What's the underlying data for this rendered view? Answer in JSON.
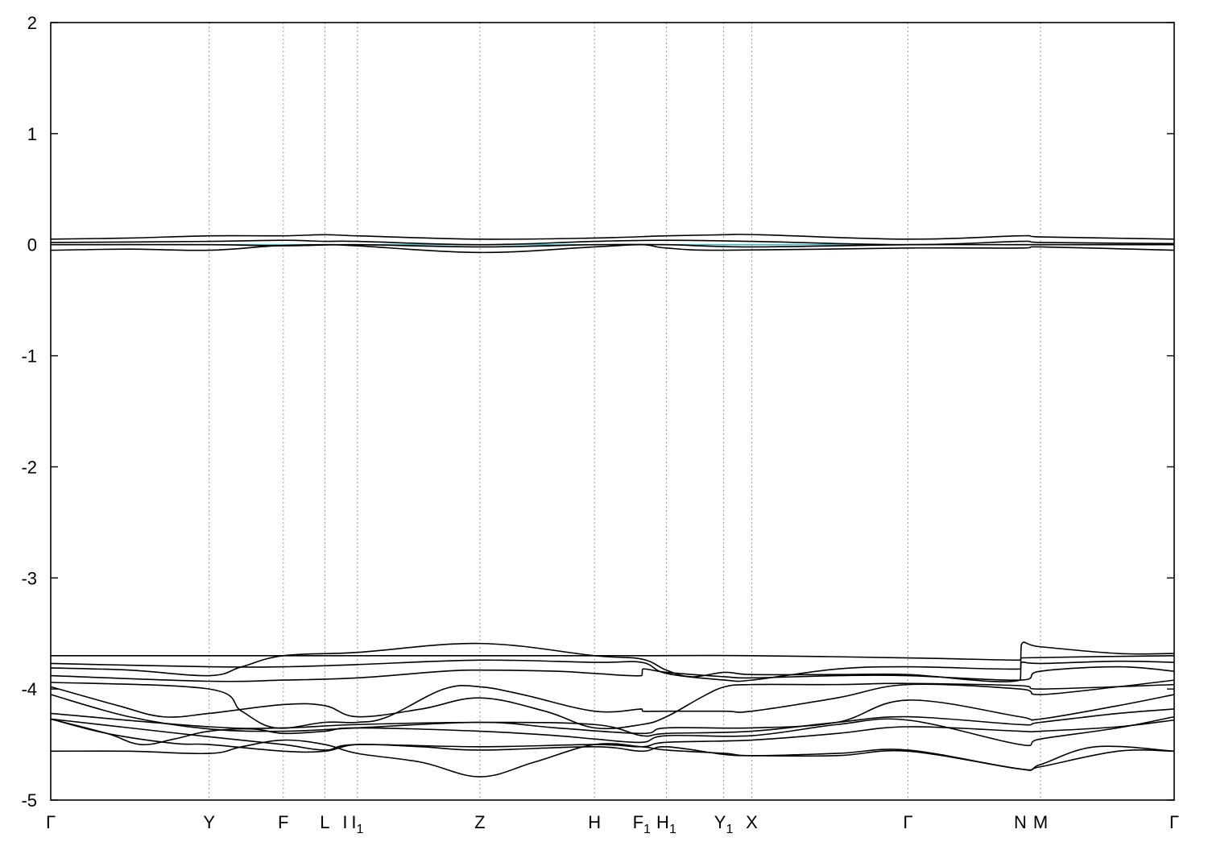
{
  "chart_data": {
    "type": "line",
    "title": "",
    "xlabel": "",
    "ylabel": "",
    "ylim": [
      -5,
      2
    ],
    "xlim": [
      0,
      1
    ],
    "grid": "vertical dotted lines at high-symmetry points",
    "legend": "none",
    "yticks": [
      {
        "value": 2,
        "label": "2"
      },
      {
        "value": 1,
        "label": "1"
      },
      {
        "value": 0,
        "label": "0"
      },
      {
        "value": -1,
        "label": "-1"
      },
      {
        "value": -2,
        "label": "-2"
      },
      {
        "value": -3,
        "label": "-3"
      },
      {
        "value": -4,
        "label": "-4"
      },
      {
        "value": -5,
        "label": "-5"
      }
    ],
    "kpoints": [
      {
        "x": 0.0,
        "label": "Γ",
        "sub": "",
        "grid": false
      },
      {
        "x": 0.141,
        "label": "Y",
        "sub": "",
        "grid": true
      },
      {
        "x": 0.207,
        "label": "F",
        "sub": "",
        "grid": true
      },
      {
        "x": 0.244,
        "label": "L",
        "sub": "",
        "grid": true
      },
      {
        "x": 0.262,
        "label": "I",
        "sub": "",
        "grid": false
      },
      {
        "x": 0.273,
        "label": "I",
        "sub": "1",
        "grid": true
      },
      {
        "x": 0.382,
        "label": "Z",
        "sub": "",
        "grid": true
      },
      {
        "x": 0.484,
        "label": "H",
        "sub": "",
        "grid": true
      },
      {
        "x": 0.526,
        "label": "F",
        "sub": "1",
        "grid": false
      },
      {
        "x": 0.548,
        "label": "H",
        "sub": "1",
        "grid": true
      },
      {
        "x": 0.599,
        "label": "Y",
        "sub": "1",
        "grid": true
      },
      {
        "x": 0.624,
        "label": "X",
        "sub": "",
        "grid": true
      },
      {
        "x": 0.763,
        "label": "Γ",
        "sub": "",
        "grid": true
      },
      {
        "x": 0.863,
        "label": "N",
        "sub": "",
        "grid": false
      },
      {
        "x": 0.881,
        "label": "M",
        "sub": "",
        "grid": true
      },
      {
        "x": 1.0,
        "label": "Γ",
        "sub": "",
        "grid": false
      }
    ],
    "fermi_level": {
      "y": 0.0,
      "color": "#3fb8c8"
    },
    "series": [
      {
        "points": [
          [
            0,
            0.05
          ],
          [
            0.07,
            0.06
          ],
          [
            0.141,
            0.08
          ],
          [
            0.207,
            0.08
          ],
          [
            0.244,
            0.09
          ],
          [
            0.273,
            0.08
          ],
          [
            0.382,
            0.05
          ],
          [
            0.484,
            0.06
          ],
          [
            0.548,
            0.08
          ],
          [
            0.6,
            0.09
          ],
          [
            0.63,
            0.09
          ],
          [
            0.763,
            0.05
          ],
          [
            0.863,
            0.08
          ],
          [
            0.881,
            0.07
          ],
          [
            1,
            0.05
          ]
        ]
      },
      {
        "points": [
          [
            0,
            0.02
          ],
          [
            0.141,
            0.03
          ],
          [
            0.207,
            0.04
          ],
          [
            0.244,
            0.03
          ],
          [
            0.273,
            0.03
          ],
          [
            0.382,
            0.0
          ],
          [
            0.484,
            0.03
          ],
          [
            0.548,
            0.04
          ],
          [
            0.624,
            0.03
          ],
          [
            0.763,
            0.0
          ],
          [
            0.863,
            0.03
          ],
          [
            0.881,
            0.02
          ],
          [
            1,
            0.01
          ]
        ]
      },
      {
        "points": [
          [
            0,
            0.0
          ],
          [
            0.141,
            0.0
          ],
          [
            0.207,
            -0.01
          ],
          [
            0.273,
            0.0
          ],
          [
            0.382,
            -0.02
          ],
          [
            0.484,
            0.0
          ],
          [
            0.548,
            0.0
          ],
          [
            0.624,
            -0.02
          ],
          [
            0.763,
            0.0
          ],
          [
            0.863,
            0.0
          ],
          [
            0.881,
            0.0
          ],
          [
            1,
            0.0
          ]
        ]
      },
      {
        "points": [
          [
            0,
            -0.05
          ],
          [
            0.07,
            -0.04
          ],
          [
            0.141,
            -0.05
          ],
          [
            0.2,
            -0.01
          ],
          [
            0.244,
            0.0
          ],
          [
            0.273,
            -0.01
          ],
          [
            0.382,
            -0.07
          ],
          [
            0.484,
            -0.02
          ],
          [
            0.526,
            0.0
          ],
          [
            0.548,
            -0.03
          ],
          [
            0.6,
            -0.05
          ],
          [
            0.763,
            -0.03
          ],
          [
            0.863,
            -0.03
          ],
          [
            0.881,
            -0.02
          ],
          [
            1,
            -0.05
          ]
        ]
      },
      {
        "points": [
          [
            0,
            -3.7
          ],
          [
            0.141,
            -3.7
          ],
          [
            0.207,
            -3.7
          ],
          [
            0.382,
            -3.7
          ],
          [
            0.484,
            -3.7
          ],
          [
            0.526,
            -3.7
          ],
          [
            0.624,
            -3.7
          ],
          [
            0.763,
            -3.72
          ],
          [
            0.863,
            -3.74
          ],
          [
            0.864,
            -3.72
          ],
          [
            1,
            -3.7
          ]
        ]
      },
      {
        "points": [
          [
            0,
            -3.77
          ],
          [
            0.141,
            -3.8
          ],
          [
            0.207,
            -3.8
          ],
          [
            0.273,
            -3.78
          ],
          [
            0.382,
            -3.74
          ],
          [
            0.484,
            -3.76
          ],
          [
            0.526,
            -3.76
          ],
          [
            0.548,
            -3.86
          ],
          [
            0.6,
            -3.92
          ],
          [
            0.624,
            -3.92
          ],
          [
            0.7,
            -3.82
          ],
          [
            0.763,
            -3.8
          ],
          [
            0.863,
            -3.82
          ],
          [
            0.864,
            -3.76
          ],
          [
            0.881,
            -3.77
          ],
          [
            0.95,
            -3.75
          ],
          [
            1,
            -3.76
          ]
        ]
      },
      {
        "points": [
          [
            0,
            -3.81
          ],
          [
            0.07,
            -3.83
          ],
          [
            0.141,
            -3.88
          ],
          [
            0.17,
            -3.8
          ],
          [
            0.207,
            -3.7
          ],
          [
            0.273,
            -3.67
          ],
          [
            0.382,
            -3.59
          ],
          [
            0.484,
            -3.7
          ],
          [
            0.526,
            -3.73
          ],
          [
            0.548,
            -3.83
          ],
          [
            0.57,
            -3.89
          ],
          [
            0.6,
            -3.85
          ],
          [
            0.624,
            -3.87
          ],
          [
            0.7,
            -3.87
          ],
          [
            0.763,
            -3.87
          ],
          [
            0.863,
            -3.92
          ],
          [
            0.864,
            -3.6
          ],
          [
            0.881,
            -3.62
          ],
          [
            0.95,
            -3.68
          ],
          [
            1,
            -3.68
          ]
        ]
      },
      {
        "points": [
          [
            0,
            -3.88
          ],
          [
            0.141,
            -3.93
          ],
          [
            0.207,
            -3.92
          ],
          [
            0.273,
            -3.9
          ],
          [
            0.35,
            -3.84
          ],
          [
            0.382,
            -3.83
          ],
          [
            0.45,
            -3.84
          ],
          [
            0.484,
            -3.86
          ],
          [
            0.526,
            -3.88
          ],
          [
            0.527,
            -3.82
          ],
          [
            0.548,
            -3.85
          ],
          [
            0.6,
            -3.89
          ],
          [
            0.624,
            -3.9
          ],
          [
            0.7,
            -3.88
          ],
          [
            0.763,
            -3.88
          ],
          [
            0.863,
            -3.92
          ],
          [
            0.881,
            -3.84
          ],
          [
            0.95,
            -3.8
          ],
          [
            1,
            -3.84
          ]
        ]
      },
      {
        "points": [
          [
            0,
            -3.94
          ],
          [
            0.141,
            -4.0
          ],
          [
            0.17,
            -4.2
          ],
          [
            0.2,
            -4.35
          ],
          [
            0.244,
            -4.3
          ],
          [
            0.273,
            -4.3
          ],
          [
            0.3,
            -4.25
          ],
          [
            0.35,
            -4.0
          ],
          [
            0.382,
            -3.98
          ],
          [
            0.42,
            -4.05
          ],
          [
            0.484,
            -4.2
          ],
          [
            0.526,
            -4.18
          ],
          [
            0.527,
            -4.2
          ],
          [
            0.548,
            -4.2
          ],
          [
            0.6,
            -4.2
          ],
          [
            0.624,
            -4.2
          ],
          [
            0.7,
            -4.08
          ],
          [
            0.763,
            -3.96
          ],
          [
            0.863,
            -4.0
          ],
          [
            0.881,
            -4.05
          ],
          [
            0.95,
            -3.98
          ],
          [
            1,
            -3.92
          ]
        ]
      },
      {
        "points": [
          [
            0,
            -3.98
          ],
          [
            0.06,
            -4.15
          ],
          [
            0.1,
            -4.25
          ],
          [
            0.141,
            -4.22
          ],
          [
            0.207,
            -4.14
          ],
          [
            0.244,
            -4.15
          ],
          [
            0.273,
            -4.25
          ],
          [
            0.33,
            -4.18
          ],
          [
            0.382,
            -4.08
          ],
          [
            0.44,
            -4.2
          ],
          [
            0.484,
            -4.35
          ],
          [
            0.526,
            -4.32
          ],
          [
            0.548,
            -4.25
          ],
          [
            0.58,
            -4.07
          ],
          [
            0.6,
            -3.98
          ],
          [
            0.624,
            -3.96
          ],
          [
            0.7,
            -3.96
          ],
          [
            0.763,
            -3.95
          ],
          [
            0.863,
            -3.97
          ],
          [
            0.881,
            -4.0
          ],
          [
            1,
            -3.96
          ]
        ]
      },
      {
        "points": [
          [
            0,
            -4.05
          ],
          [
            0.07,
            -4.25
          ],
          [
            0.141,
            -4.36
          ],
          [
            0.207,
            -4.38
          ],
          [
            0.273,
            -4.35
          ],
          [
            0.382,
            -4.3
          ],
          [
            0.45,
            -4.35
          ],
          [
            0.526,
            -4.4
          ],
          [
            0.548,
            -4.35
          ],
          [
            0.624,
            -4.35
          ],
          [
            0.7,
            -4.3
          ],
          [
            0.763,
            -4.1
          ],
          [
            0.863,
            -4.25
          ],
          [
            0.881,
            -4.27
          ],
          [
            0.95,
            -4.15
          ],
          [
            1,
            -4.05
          ]
        ]
      },
      {
        "points": [
          [
            0,
            -4.22
          ],
          [
            0.141,
            -4.34
          ],
          [
            0.207,
            -4.35
          ],
          [
            0.273,
            -4.32
          ],
          [
            0.382,
            -4.3
          ],
          [
            0.484,
            -4.32
          ],
          [
            0.526,
            -4.42
          ],
          [
            0.548,
            -4.4
          ],
          [
            0.624,
            -4.38
          ],
          [
            0.7,
            -4.3
          ],
          [
            0.763,
            -4.25
          ],
          [
            0.863,
            -4.32
          ],
          [
            0.881,
            -4.3
          ],
          [
            0.95,
            -4.22
          ],
          [
            1,
            -4.18
          ]
        ]
      },
      {
        "points": [
          [
            0,
            -4.27
          ],
          [
            0.05,
            -4.4
          ],
          [
            0.08,
            -4.5
          ],
          [
            0.11,
            -4.45
          ],
          [
            0.141,
            -4.38
          ],
          [
            0.18,
            -4.36
          ],
          [
            0.207,
            -4.4
          ],
          [
            0.244,
            -4.38
          ],
          [
            0.273,
            -4.35
          ],
          [
            0.382,
            -4.38
          ],
          [
            0.45,
            -4.42
          ],
          [
            0.484,
            -4.45
          ],
          [
            0.526,
            -4.48
          ],
          [
            0.548,
            -4.42
          ],
          [
            0.624,
            -4.42
          ],
          [
            0.7,
            -4.32
          ],
          [
            0.763,
            -4.28
          ],
          [
            0.863,
            -4.5
          ],
          [
            0.881,
            -4.45
          ],
          [
            0.95,
            -4.35
          ],
          [
            1,
            -4.25
          ]
        ]
      },
      {
        "points": [
          [
            0,
            -4.27
          ],
          [
            0.07,
            -4.35
          ],
          [
            0.141,
            -4.43
          ],
          [
            0.207,
            -4.5
          ],
          [
            0.244,
            -4.55
          ],
          [
            0.273,
            -4.5
          ],
          [
            0.382,
            -4.52
          ],
          [
            0.484,
            -4.5
          ],
          [
            0.526,
            -4.52
          ],
          [
            0.548,
            -4.48
          ],
          [
            0.624,
            -4.46
          ],
          [
            0.7,
            -4.4
          ],
          [
            0.763,
            -4.34
          ],
          [
            0.863,
            -4.38
          ],
          [
            0.881,
            -4.38
          ],
          [
            0.95,
            -4.34
          ],
          [
            1,
            -4.28
          ]
        ]
      },
      {
        "points": [
          [
            0,
            -4.56
          ],
          [
            0.07,
            -4.56
          ],
          [
            0.141,
            -4.58
          ],
          [
            0.17,
            -4.52
          ],
          [
            0.207,
            -4.46
          ],
          [
            0.244,
            -4.5
          ],
          [
            0.273,
            -4.58
          ],
          [
            0.33,
            -4.66
          ],
          [
            0.382,
            -4.79
          ],
          [
            0.43,
            -4.66
          ],
          [
            0.484,
            -4.5
          ],
          [
            0.526,
            -4.52
          ],
          [
            0.548,
            -4.55
          ],
          [
            0.6,
            -4.58
          ],
          [
            0.624,
            -4.6
          ],
          [
            0.7,
            -4.58
          ],
          [
            0.763,
            -4.55
          ],
          [
            0.863,
            -4.72
          ],
          [
            0.881,
            -4.68
          ],
          [
            0.93,
            -4.52
          ],
          [
            1,
            -4.56
          ]
        ]
      },
      {
        "points": [
          [
            0,
            -4.27
          ],
          [
            0.05,
            -4.4
          ],
          [
            0.11,
            -4.49
          ],
          [
            0.141,
            -4.5
          ],
          [
            0.207,
            -4.56
          ],
          [
            0.244,
            -4.56
          ],
          [
            0.273,
            -4.5
          ],
          [
            0.33,
            -4.52
          ],
          [
            0.382,
            -4.55
          ],
          [
            0.484,
            -4.52
          ],
          [
            0.526,
            -4.56
          ],
          [
            0.548,
            -4.52
          ],
          [
            0.6,
            -4.59
          ],
          [
            0.624,
            -4.6
          ],
          [
            0.7,
            -4.6
          ],
          [
            0.763,
            -4.56
          ],
          [
            0.863,
            -4.72
          ],
          [
            0.881,
            -4.7
          ],
          [
            0.95,
            -4.56
          ],
          [
            1,
            -4.56
          ]
        ]
      }
    ]
  }
}
